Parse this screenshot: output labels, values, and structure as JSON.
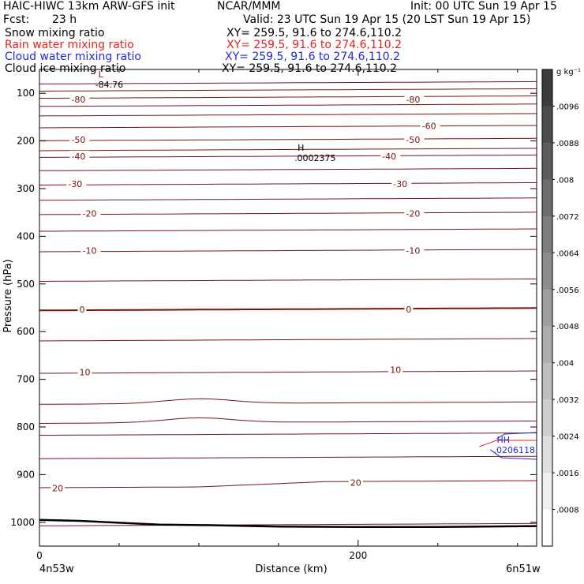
{
  "header": {
    "title_left": "HAIC-HIWC 13km ARW-GFS init",
    "title_mid": "NCAR/MMM",
    "init": "Init: 00 UTC Sun 19 Apr 15",
    "fcst_label": "Fcst:",
    "fcst_value": "23 h",
    "valid": "Valid: 23 UTC Sun 19 Apr 15 (20 LST Sun 19 Apr 15)",
    "fields": [
      {
        "name": "Snow mixing ratio",
        "xy": "XY= 259.5, 91.6 to 274.6,110.2",
        "color": "#000000"
      },
      {
        "name": "Rain water mixing ratio",
        "xy": "XY= 259.5, 91.6 to 274.6,110.2",
        "color": "#e8201c"
      },
      {
        "name": "Cloud water mixing ratio",
        "xy": "XY= 259.5, 91.6 to 274.6,110.2",
        "color": "#1f2bd6"
      },
      {
        "name": "Cloud ice mixing ratio",
        "xy": "XY= 259.5, 91.6 to 274.6,110.2",
        "color": "#000000"
      }
    ]
  },
  "chart_data": {
    "type": "line",
    "ylabel": "Pressure (hPa)",
    "xlabel": "Distance (km)",
    "x_start_label": "4n53w",
    "x_end_label": "6n51w",
    "xlim": [
      0,
      312
    ],
    "ylim": [
      1050,
      50
    ],
    "y_ticks": [
      100,
      200,
      300,
      400,
      500,
      600,
      700,
      800,
      900,
      1000
    ],
    "x_ticks": [
      0,
      200
    ],
    "x_minor_ticks": [
      50,
      100,
      150,
      250,
      300
    ],
    "colorbar": {
      "unit": "g kg⁻¹",
      "labels": [
        ".0096",
        ".0088",
        ".008",
        ".0072",
        ".0064",
        ".0056",
        ".0048",
        ".004",
        ".0032",
        ".0024",
        ".0016",
        ".0008"
      ],
      "levels": 13
    },
    "temperature_lines_pressure": [
      78,
      93,
      108,
      125,
      145,
      170,
      197,
      218,
      232,
      260,
      290,
      322,
      352,
      387,
      430,
      492,
      553,
      617,
      685,
      750,
      790,
      815,
      864,
      925,
      1005
    ],
    "temperature_labels": [
      {
        "text": "-80",
        "x": 20,
        "p": 113
      },
      {
        "text": "-80",
        "x": 230,
        "p": 113
      },
      {
        "text": "-60",
        "x": 240,
        "p": 168
      },
      {
        "text": "-50",
        "x": 20,
        "p": 197
      },
      {
        "text": "-50",
        "x": 230,
        "p": 197
      },
      {
        "text": "-40",
        "x": 20,
        "p": 232
      },
      {
        "text": "-40",
        "x": 215,
        "p": 232
      },
      {
        "text": "-30",
        "x": 18,
        "p": 290
      },
      {
        "text": "-30",
        "x": 222,
        "p": 290
      },
      {
        "text": "-20",
        "x": 27,
        "p": 352
      },
      {
        "text": "-20",
        "x": 230,
        "p": 352
      },
      {
        "text": "-10",
        "x": 27,
        "p": 430
      },
      {
        "text": "-10",
        "x": 230,
        "p": 430
      },
      {
        "text": "0",
        "x": 25,
        "p": 553
      },
      {
        "text": "0",
        "x": 230,
        "p": 553
      },
      {
        "text": "10",
        "x": 25,
        "p": 685
      },
      {
        "text": "10",
        "x": 220,
        "p": 680
      },
      {
        "text": "20",
        "x": 8,
        "p": 928
      },
      {
        "text": "20",
        "x": 195,
        "p": 917
      }
    ],
    "extrema": [
      {
        "letter": "L",
        "value": "-84.76",
        "x": 35,
        "p": 73
      },
      {
        "letter": "H",
        "value": ".0002375",
        "x": 160,
        "p": 227
      },
      {
        "letter": "HH",
        "value": ".0206118",
        "x": 285,
        "p": 840
      }
    ],
    "ground_pressure": [
      {
        "x": 0,
        "p": 995
      },
      {
        "x": 25,
        "p": 997
      },
      {
        "x": 50,
        "p": 1001
      },
      {
        "x": 75,
        "p": 1005
      },
      {
        "x": 105,
        "p": 1006
      },
      {
        "x": 150,
        "p": 1009
      },
      {
        "x": 200,
        "p": 1010
      },
      {
        "x": 250,
        "p": 1010
      },
      {
        "x": 312,
        "p": 1008
      }
    ],
    "series": [
      {
        "name": "Cloud water mixing ratio",
        "color": "#1f2bd6"
      },
      {
        "name": "Rain water mixing ratio",
        "color": "#e8201c"
      }
    ]
  }
}
